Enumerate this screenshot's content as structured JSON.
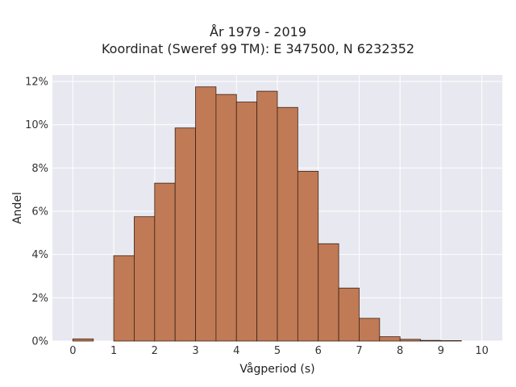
{
  "chart_data": {
    "type": "bar",
    "title": "År 1979 - 2019",
    "subtitle": "Koordinat (Sweref 99 TM): E 347500, N 6232352",
    "xlabel": "Vågperiod (s)",
    "ylabel": "Andel",
    "bin_width": 0.5,
    "bin_starts": [
      0,
      0.5,
      1,
      1.5,
      2,
      2.5,
      3,
      3.5,
      4,
      4.5,
      5,
      5.5,
      6,
      6.5,
      7,
      7.5,
      8,
      8.5,
      9,
      9.5
    ],
    "values": [
      0.1,
      0,
      3.95,
      5.75,
      7.3,
      9.85,
      11.75,
      11.4,
      11.05,
      11.55,
      10.8,
      7.85,
      4.5,
      2.45,
      1.05,
      0.2,
      0.08,
      0.03,
      0.02,
      0
    ],
    "xlim": [
      -0.5,
      10.5
    ],
    "ylim": [
      0,
      12.3
    ],
    "xticks": [
      "0",
      "1",
      "2",
      "3",
      "4",
      "5",
      "6",
      "7",
      "8",
      "9",
      "10"
    ],
    "yticks": [
      "0%",
      "2%",
      "4%",
      "6%",
      "8%",
      "10%",
      "12%"
    ],
    "grid": true,
    "colors": {
      "bar": "#c07a55",
      "edge": "#3b2316",
      "plot_bg": "#e8e8f0",
      "grid": "#ffffff"
    }
  }
}
